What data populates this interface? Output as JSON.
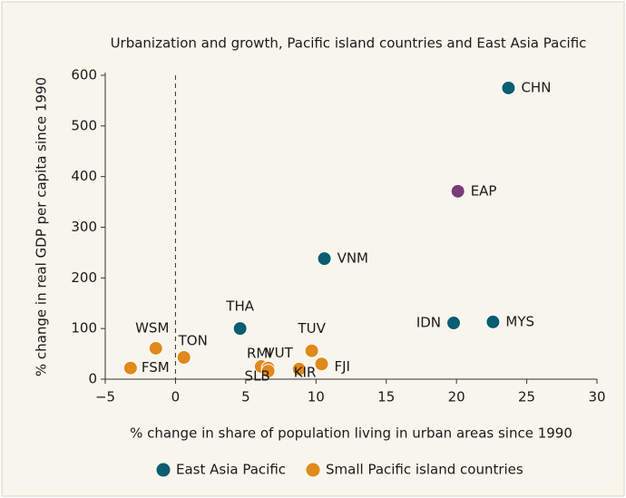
{
  "chart_data": {
    "type": "scatter",
    "title": "Urbanization and growth, Pacific island countries and East Asia Pacific",
    "xlabel": "% change in share of population living in urban areas since 1990",
    "ylabel": "% change in real GDP per capita since 1990",
    "xlim": [
      -5,
      30
    ],
    "xticks": [
      {
        "value": -5,
        "label": "−5"
      },
      0,
      5,
      10,
      15,
      20,
      25,
      30
    ],
    "ylim": [
      0,
      600
    ],
    "yticks": [
      0,
      100,
      200,
      300,
      400,
      500,
      600
    ],
    "series": [
      {
        "name": "East Asia Pacific",
        "color": "#0b5d72",
        "labels": [
          "CHN",
          "VNM",
          "THA",
          "IDN",
          "MYS"
        ],
        "x": [
          23.7,
          10.6,
          4.6,
          19.8,
          22.6
        ],
        "values": [
          575,
          238,
          100,
          111,
          113
        ]
      },
      {
        "color": "#7a3b7b",
        "labels": [
          "EAP"
        ],
        "x": [
          20.1
        ],
        "values": [
          371
        ]
      },
      {
        "name": "Small Pacific island countries",
        "color": "#e0891c",
        "labels": [
          "WSM",
          "TON",
          "FSM",
          "TUV",
          "FJI",
          "RMI",
          "VUT",
          "SLB",
          "KIR"
        ],
        "x": [
          -1.4,
          0.6,
          -3.2,
          9.7,
          10.4,
          6.1,
          6.6,
          6.6,
          8.8
        ],
        "values": [
          61,
          43,
          22,
          56,
          30,
          25,
          22,
          16,
          20
        ]
      }
    ]
  }
}
